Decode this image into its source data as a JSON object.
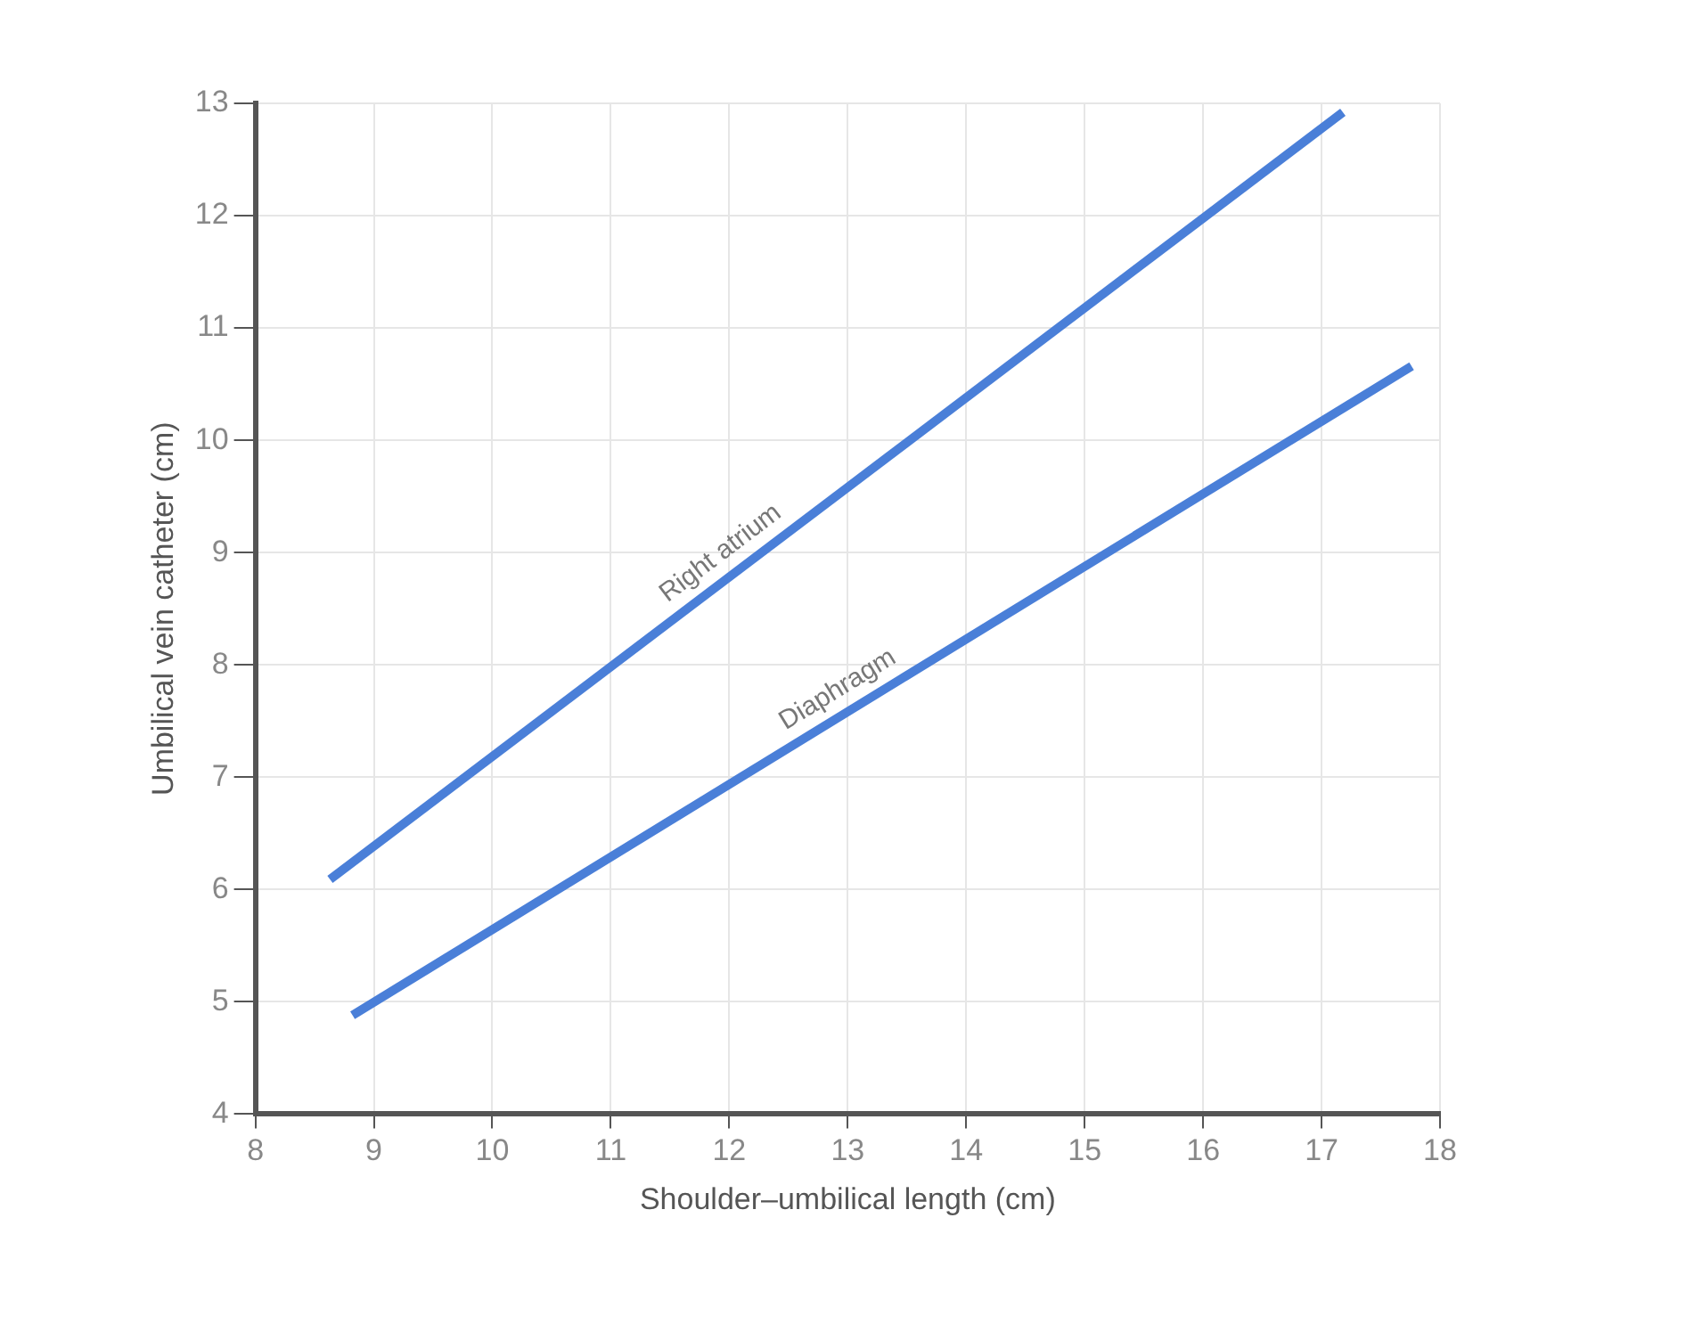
{
  "chart_data": {
    "type": "line",
    "xlabel": "Shoulder–umbilical length (cm)",
    "ylabel": "Umbilical vein catheter (cm)",
    "xlim": [
      8,
      18
    ],
    "xticks": [
      8,
      9,
      10,
      11,
      12,
      13,
      14,
      15,
      16,
      17,
      18
    ],
    "ylim": [
      4,
      13
    ],
    "yticks": [
      4,
      5,
      6,
      7,
      8,
      9,
      10,
      11,
      12,
      13
    ],
    "grid": true,
    "legend": false,
    "marker": "none",
    "line_style": "solid",
    "series": [
      {
        "name": "Right atrium",
        "color": "#4a7fd8",
        "x": [
          8.63,
          17.18
        ],
        "values": [
          6.09,
          12.92
        ]
      },
      {
        "name": "Diaphragm",
        "color": "#4a7fd8",
        "x": [
          8.82,
          17.76
        ],
        "values": [
          4.88,
          10.66
        ]
      }
    ]
  }
}
